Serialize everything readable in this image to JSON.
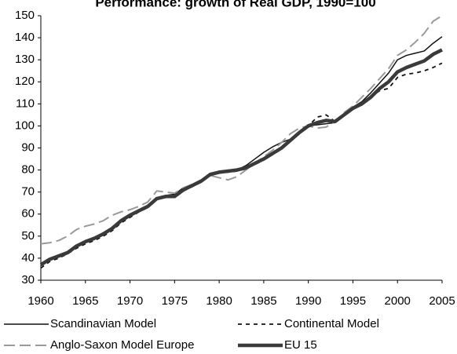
{
  "chart_data": {
    "type": "line",
    "title": "Performance: growth of Real GDP, 1990=100",
    "x": [
      1960,
      1961,
      1962,
      1963,
      1964,
      1965,
      1966,
      1967,
      1968,
      1969,
      1970,
      1971,
      1972,
      1973,
      1974,
      1975,
      1976,
      1977,
      1978,
      1979,
      1980,
      1981,
      1982,
      1983,
      1984,
      1985,
      1986,
      1987,
      1988,
      1989,
      1990,
      1991,
      1992,
      1993,
      1994,
      1995,
      1996,
      1997,
      1998,
      1999,
      2000,
      2001,
      2002,
      2003,
      2004,
      2005
    ],
    "xlim": [
      1960,
      2005
    ],
    "xticks": [
      1960,
      1965,
      1970,
      1975,
      1980,
      1985,
      1990,
      1995,
      2000,
      2005
    ],
    "ylim": [
      30,
      150
    ],
    "yticks": [
      30,
      40,
      50,
      60,
      70,
      80,
      90,
      100,
      110,
      120,
      130,
      140,
      150
    ],
    "series": [
      {
        "name": "Scandinavian Model",
        "color": "#111111",
        "width": 1.5,
        "dash": "none",
        "values": [
          37,
          39,
          40.5,
          42,
          45,
          47,
          48.5,
          50.5,
          53,
          56.5,
          59,
          61,
          63,
          67,
          68.5,
          69,
          72,
          73.5,
          75.5,
          78,
          79.5,
          79.5,
          80,
          82,
          85,
          88,
          90.5,
          92.5,
          94,
          97,
          100,
          100.5,
          101,
          101.5,
          105,
          108.5,
          111,
          115,
          119.5,
          124,
          130,
          132,
          133,
          134,
          137.5,
          140.5
        ]
      },
      {
        "name": "Continental Model",
        "color": "#111111",
        "width": 1.8,
        "dash": "5,5",
        "values": [
          35.5,
          38.5,
          40,
          42,
          44.5,
          46.5,
          48,
          50,
          52.5,
          56,
          58.5,
          61,
          63,
          66.5,
          68,
          67.5,
          70.5,
          72.5,
          74.5,
          77.5,
          79,
          79,
          79.5,
          80.5,
          82.5,
          84.5,
          87,
          89.5,
          93,
          97,
          100,
          104,
          105,
          102,
          104.5,
          107.5,
          110,
          113,
          116,
          117,
          122,
          123.5,
          124,
          125,
          126.5,
          128.5
        ]
      },
      {
        "name": "Anglo-Saxon Model Europe",
        "color": "#9a9a9a",
        "width": 2,
        "dash": "14,6",
        "values": [
          46.5,
          47,
          48,
          50,
          53,
          54.5,
          55.5,
          57,
          59.5,
          61,
          62,
          63.5,
          65.5,
          70.5,
          70,
          69.5,
          72,
          73.5,
          75.5,
          77.5,
          76.5,
          75.5,
          77,
          80,
          83,
          86,
          89,
          92.5,
          96.5,
          99,
          100,
          99,
          99.5,
          102,
          106,
          109,
          113,
          117,
          121.5,
          126,
          132,
          134.5,
          138,
          142,
          147.5,
          150
        ]
      },
      {
        "name": "EU 15",
        "color": "#3a3a3a",
        "width": 4.5,
        "dash": "none",
        "values": [
          37,
          39.5,
          41,
          42.5,
          45.5,
          47.5,
          49,
          51,
          53.5,
          57,
          59.5,
          61.5,
          63.5,
          67,
          68,
          68,
          71,
          73,
          75,
          78,
          79,
          79.5,
          80,
          81,
          83,
          85,
          87.5,
          90,
          93.5,
          97,
          100,
          101.5,
          102.5,
          102,
          105,
          108,
          110,
          113,
          117,
          120,
          124.5,
          126.5,
          128,
          129.5,
          132.5,
          134.5
        ]
      }
    ]
  }
}
